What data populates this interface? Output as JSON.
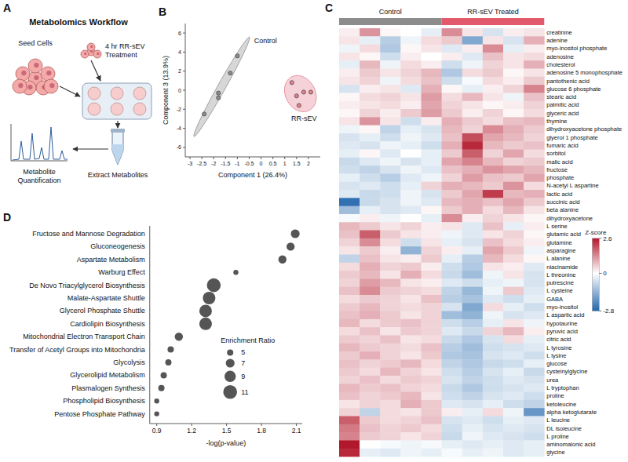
{
  "workflow": {
    "panel_label": "A",
    "title": "Metabolomics Workflow",
    "steps": [
      "Seed Cells",
      "4 hr RR-sEV Treatment",
      "Extract Metabolites",
      "Metabolite Quantification"
    ]
  },
  "chart_data": [
    {
      "panel_label": "B",
      "type": "scatter",
      "x_label": "Component 1 (26.4%)",
      "y_label": "Component 3 (13.9%)",
      "xlim": [
        -3.2,
        2.5
      ],
      "ylim": [
        -7,
        7
      ],
      "xticks": [
        -3,
        -2.5,
        -2,
        -1.5,
        -1,
        -0.5,
        0,
        0.5,
        1,
        1.5,
        2
      ],
      "yticks": [
        -6,
        -4,
        -2,
        0,
        2,
        4,
        6
      ],
      "series": [
        {
          "name": "Control",
          "color": "#8c8c8c",
          "x": [
            -2.4,
            -1.8,
            -1.8,
            -1.3,
            -1.0
          ],
          "values": [
            -2.5,
            -0.8,
            -0.3,
            1.8,
            3.6
          ]
        },
        {
          "name": "RR-sEV",
          "color": "#e37f8c",
          "x": [
            1.3,
            1.5,
            1.8,
            2.1,
            1.6
          ],
          "values": [
            0.8,
            -0.6,
            -0.2,
            -0.2,
            -1.6
          ]
        }
      ]
    },
    {
      "panel_label": "C",
      "type": "heatmap",
      "groups": [
        {
          "name": "Control",
          "color": "#8c8c8c",
          "count": 5
        },
        {
          "name": "RR-sEV Treated",
          "color": "#e2596b",
          "count": 5
        }
      ],
      "rows": [
        "creatinine",
        "adenine",
        "myo-inositol phosphate",
        "adenosine",
        "cholesterol",
        "adenosine 5 monophosphate",
        "pantothenic acid",
        "glucose 6 phosphate",
        "stearic acid",
        "palmitic acid",
        "glyceric acid",
        "thymine",
        "dihydroxyacetone phosphate",
        "glyerol 1 phosphate",
        "fumaric acid",
        "sorbitol",
        "malic acid",
        "fructose",
        "phosphate",
        "N-acetyl L aspartine",
        "lactic acid",
        "succinic acid",
        "beta alanine",
        "dihydroxyacetone",
        "L serine",
        "glutamic acid",
        "glutamine",
        "asparagine",
        "L alanine",
        "niacinamide",
        "L threonine",
        "putrescine",
        "L cysteine",
        "GABA",
        "myo-inositol",
        "L aspartic acid",
        "hypotaurine",
        "pyruvic acid",
        "citric acid",
        "L tyrosine",
        "L lysine",
        "glucose",
        "cysteinylglycine",
        "urea",
        "L tryptophan",
        "proline",
        "ketoleucine",
        "alpha ketoglutarate",
        "L leucine",
        "DL isoleucine",
        "L proline",
        "aminomalonic acid",
        "glycine"
      ],
      "cells": [
        [
          0.2,
          1.2,
          0.1,
          0.0,
          -0.3,
          1.3,
          0.3,
          -0.5,
          0.2,
          0.3
        ],
        [
          0.3,
          -0.3,
          -0.9,
          -0.2,
          0.4,
          0.6,
          -1.6,
          0.3,
          -0.5,
          0.9
        ],
        [
          -0.2,
          0.4,
          -1.0,
          0.1,
          0.3,
          -0.4,
          0.2,
          1.3,
          -0.3,
          0.2
        ],
        [
          0.3,
          0.1,
          -0.6,
          0.2,
          0.0,
          0.2,
          -0.4,
          0.7,
          0.3,
          0.4
        ],
        [
          -0.3,
          0.8,
          -0.2,
          0.4,
          0.2,
          -0.6,
          -0.2,
          0.5,
          0.3,
          0.9
        ],
        [
          0.2,
          0.6,
          0.3,
          0.5,
          0.8,
          -1.0,
          0.4,
          0.6,
          0.1,
          0.3
        ],
        [
          0.3,
          0.5,
          -0.2,
          0.4,
          0.7,
          -0.6,
          -0.1,
          0.4,
          0.2,
          0.6
        ],
        [
          -0.5,
          0.2,
          0.3,
          -0.4,
          0.9,
          0.1,
          -0.3,
          0.2,
          0.5,
          1.4
        ],
        [
          0.1,
          0.4,
          0.5,
          0.3,
          1.1,
          0.4,
          0.8,
          0.3,
          -0.2,
          0.7
        ],
        [
          0.2,
          0.3,
          0.4,
          0.2,
          1.0,
          0.5,
          0.3,
          0.1,
          0.2,
          0.5
        ],
        [
          0.1,
          0.5,
          0.2,
          0.6,
          1.1,
          0.6,
          0.2,
          0.5,
          0.1,
          0.4
        ],
        [
          0.3,
          1.2,
          0.3,
          -0.6,
          0.2,
          0.9,
          0.6,
          0.4,
          0.7,
          0.8
        ],
        [
          -0.2,
          0.1,
          -0.8,
          -0.3,
          -0.5,
          0.8,
          0.5,
          1.3,
          0.9,
          0.6
        ],
        [
          -0.5,
          -0.3,
          -0.6,
          -0.2,
          -0.4,
          0.7,
          2.0,
          1.0,
          0.8,
          0.5
        ],
        [
          -0.4,
          -0.5,
          -0.2,
          -0.3,
          -0.6,
          0.9,
          2.4,
          0.8,
          0.6,
          0.7
        ],
        [
          -0.3,
          0.1,
          -0.4,
          0.0,
          -0.3,
          0.6,
          1.8,
          0.5,
          1.0,
          0.4
        ],
        [
          -0.7,
          -0.4,
          -0.2,
          -0.5,
          -0.3,
          1.0,
          1.4,
          0.8,
          0.5,
          0.6
        ],
        [
          -0.6,
          -0.8,
          -0.5,
          -0.2,
          -0.4,
          0.7,
          0.9,
          1.2,
          1.0,
          0.8
        ],
        [
          -0.3,
          -0.6,
          -0.9,
          -0.4,
          -0.2,
          0.5,
          1.1,
          0.7,
          0.6,
          1.0
        ],
        [
          -0.5,
          -0.4,
          -0.6,
          -0.3,
          0.5,
          0.9,
          0.8,
          0.6,
          1.2,
          0.4
        ],
        [
          -0.4,
          -0.7,
          -0.6,
          -0.2,
          -0.5,
          0.6,
          1.0,
          2.2,
          0.8,
          0.9
        ],
        [
          -2.6,
          -0.7,
          -0.5,
          -0.2,
          -0.4,
          0.8,
          0.9,
          0.7,
          1.0,
          0.6
        ],
        [
          -1.2,
          -0.3,
          -0.5,
          -0.4,
          0.1,
          0.6,
          0.9,
          0.4,
          0.8,
          0.3
        ],
        [
          -0.1,
          0.2,
          -0.2,
          0.0,
          -0.3,
          1.3,
          0.2,
          0.5,
          0.3,
          0.1
        ],
        [
          0.8,
          0.6,
          0.3,
          0.5,
          0.2,
          0.3,
          -0.4,
          0.7,
          -0.3,
          0.2
        ],
        [
          0.7,
          1.8,
          0.6,
          0.3,
          0.2,
          -0.2,
          -0.4,
          0.3,
          0.5,
          0.1
        ],
        [
          0.5,
          1.3,
          0.4,
          -0.6,
          0.3,
          -0.3,
          -0.5,
          0.7,
          0.4,
          0.2
        ],
        [
          0.3,
          0.6,
          0.2,
          -1.4,
          0.5,
          0.2,
          -0.3,
          1.0,
          0.6,
          -0.2
        ],
        [
          -0.8,
          0.7,
          0.3,
          0.2,
          0.6,
          -0.3,
          -0.9,
          0.8,
          0.4,
          0.1
        ],
        [
          0.4,
          0.9,
          0.5,
          0.6,
          0.2,
          -0.6,
          -1.0,
          0.3,
          0.2,
          -0.4
        ],
        [
          0.6,
          0.8,
          0.3,
          0.9,
          0.4,
          -0.7,
          -1.2,
          -0.2,
          0.3,
          -0.5
        ],
        [
          0.5,
          1.1,
          0.8,
          0.3,
          0.2,
          -0.4,
          -0.6,
          -0.3,
          -0.2,
          -0.5
        ],
        [
          0.7,
          1.3,
          0.6,
          0.5,
          0.4,
          -0.8,
          -1.3,
          -0.2,
          0.6,
          -0.4
        ],
        [
          0.4,
          0.6,
          0.5,
          0.3,
          0.7,
          -0.9,
          -1.1,
          -0.4,
          -0.6,
          -0.3
        ],
        [
          0.6,
          0.8,
          0.5,
          0.4,
          0.5,
          -0.5,
          -1.6,
          0.4,
          -0.3,
          -0.6
        ],
        [
          0.7,
          0.9,
          0.6,
          0.3,
          0.5,
          -1.2,
          -1.4,
          -0.2,
          -0.5,
          -0.4
        ],
        [
          0.8,
          0.4,
          0.6,
          0.7,
          0.5,
          -0.6,
          -0.9,
          -0.3,
          0.3,
          -0.2
        ],
        [
          0.4,
          0.7,
          0.3,
          0.6,
          0.5,
          -0.4,
          -0.7,
          0.5,
          0.8,
          0.2
        ],
        [
          0.6,
          0.5,
          0.7,
          0.3,
          0.4,
          -0.7,
          -1.0,
          -0.5,
          0.4,
          -0.3
        ],
        [
          0.8,
          0.6,
          0.5,
          0.4,
          0.7,
          -0.9,
          -1.2,
          -0.6,
          -0.5,
          -0.4
        ],
        [
          0.6,
          0.9,
          0.5,
          0.3,
          0.6,
          -1.0,
          -1.1,
          -0.5,
          -0.4,
          -0.6
        ],
        [
          0.7,
          0.5,
          0.6,
          0.8,
          0.4,
          -0.8,
          -1.0,
          -0.7,
          -0.6,
          -0.3
        ],
        [
          0.6,
          0.4,
          0.8,
          0.5,
          0.3,
          -0.6,
          -0.9,
          -0.5,
          -0.3,
          -0.7
        ],
        [
          0.5,
          0.7,
          0.4,
          0.6,
          0.5,
          -0.5,
          -0.8,
          -0.6,
          -0.4,
          -0.5
        ],
        [
          0.8,
          0.6,
          0.7,
          0.5,
          0.4,
          -0.7,
          -1.0,
          -0.6,
          -0.5,
          -0.4
        ],
        [
          0.7,
          0.5,
          0.6,
          0.8,
          0.3,
          -0.6,
          -0.8,
          -0.5,
          -0.4,
          -0.6
        ],
        [
          0.3,
          0.5,
          0.4,
          0.9,
          0.6,
          -0.4,
          -0.5,
          -0.3,
          -0.6,
          -0.8
        ],
        [
          0.5,
          -0.8,
          0.4,
          0.3,
          0.6,
          0.2,
          -0.3,
          0.4,
          -0.2,
          -1.9
        ],
        [
          1.8,
          0.6,
          0.4,
          0.5,
          0.7,
          -0.5,
          -0.4,
          -0.6,
          -0.3,
          -0.4
        ],
        [
          1.5,
          0.7,
          0.5,
          0.6,
          0.4,
          -0.6,
          -0.3,
          -0.5,
          -0.4,
          -0.5
        ],
        [
          1.4,
          0.6,
          0.5,
          0.3,
          0.5,
          -0.7,
          -0.2,
          -0.4,
          -0.5,
          -0.6
        ],
        [
          2.6,
          0.0,
          -0.1,
          -0.2,
          -0.1,
          -0.3,
          -0.4,
          -0.3,
          -0.4,
          -0.3
        ],
        [
          2.4,
          -0.3,
          -0.4,
          -0.2,
          -0.3,
          -0.1,
          -0.3,
          -0.2,
          -0.4,
          -0.3
        ]
      ],
      "colorbar": {
        "title": "Z-score",
        "range": [
          -2.8,
          2.6
        ],
        "ticks": [
          2.6,
          0,
          -2.8
        ],
        "colors": [
          "#2166ac",
          "#ffffff",
          "#b2182b"
        ]
      }
    },
    {
      "panel_label": "D",
      "type": "bubble",
      "x_label": "-log(p-value)",
      "color": "#555555",
      "categories": [
        "Fructose and Mannose Degradation",
        "Gluconeogenesis",
        "Aspartate Metabolism",
        "Warburg Effect",
        "De Novo Triacylglycerol Biosynthesis",
        "Malate-Aspartate Shuttle",
        "Glycerol Phosphate Shuttle",
        "Cardiolipin Biosynthesis",
        "Mitochondrial Electron Transport Chain",
        "Transfer of Acetyl Groups into Mitochondria",
        "Glycolysis",
        "Glycerolipid Metabolism",
        "Plasmalogen Synthesis",
        "Phospholipid Biosynthesis",
        "Pentose Phosphate Pathway"
      ],
      "values": [
        2.09,
        2.05,
        1.98,
        1.58,
        1.39,
        1.35,
        1.32,
        1.32,
        1.09,
        1.02,
        1.0,
        0.96,
        0.94,
        0.9,
        0.9
      ],
      "sizes": [
        7,
        6.5,
        6.5,
        4,
        11,
        10,
        10,
        10,
        6.5,
        5,
        5,
        5,
        5,
        4,
        4
      ],
      "size_legend": {
        "title": "Enrichment Ratio",
        "values": [
          5,
          7,
          9,
          11
        ]
      },
      "xlim": [
        0.84,
        2.15
      ],
      "xticks": [
        0.9,
        1.2,
        1.5,
        1.8,
        2.1
      ]
    }
  ]
}
